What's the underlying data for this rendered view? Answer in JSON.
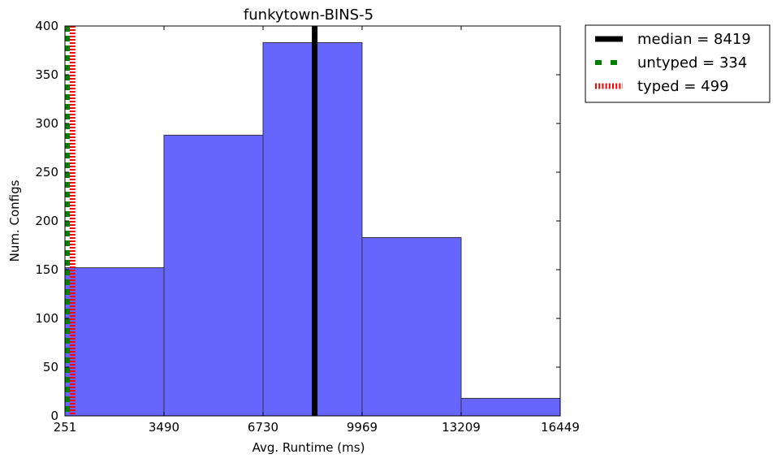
{
  "chart_data": {
    "type": "bar",
    "title": "funkytown-BINS-5",
    "xlabel": "Avg. Runtime (ms)",
    "ylabel": "Num. Configs",
    "xlim": [
      251,
      16449
    ],
    "ylim": [
      0,
      400
    ],
    "x_ticks": [
      251,
      3490,
      6730,
      9969,
      13209,
      16449
    ],
    "y_ticks": [
      0,
      50,
      100,
      150,
      200,
      250,
      300,
      350,
      400
    ],
    "bins": [
      {
        "start": 251,
        "end": 3490,
        "count": 152
      },
      {
        "start": 3490,
        "end": 6730,
        "count": 288
      },
      {
        "start": 6730,
        "end": 9969,
        "count": 383
      },
      {
        "start": 9969,
        "end": 13209,
        "count": 183
      },
      {
        "start": 13209,
        "end": 16449,
        "count": 18
      }
    ],
    "bar_color": "#6666ff",
    "vlines": [
      {
        "label": "median = 8419",
        "x": 8419,
        "color": "#000000",
        "style": "solid"
      },
      {
        "label": "untyped = 334",
        "x": 334,
        "color": "#007f00",
        "style": "dashed"
      },
      {
        "label": "typed = 499",
        "x": 499,
        "color": "#ff0000",
        "style": "dotted"
      }
    ],
    "legend_position": "outside top-right",
    "grid": false
  }
}
